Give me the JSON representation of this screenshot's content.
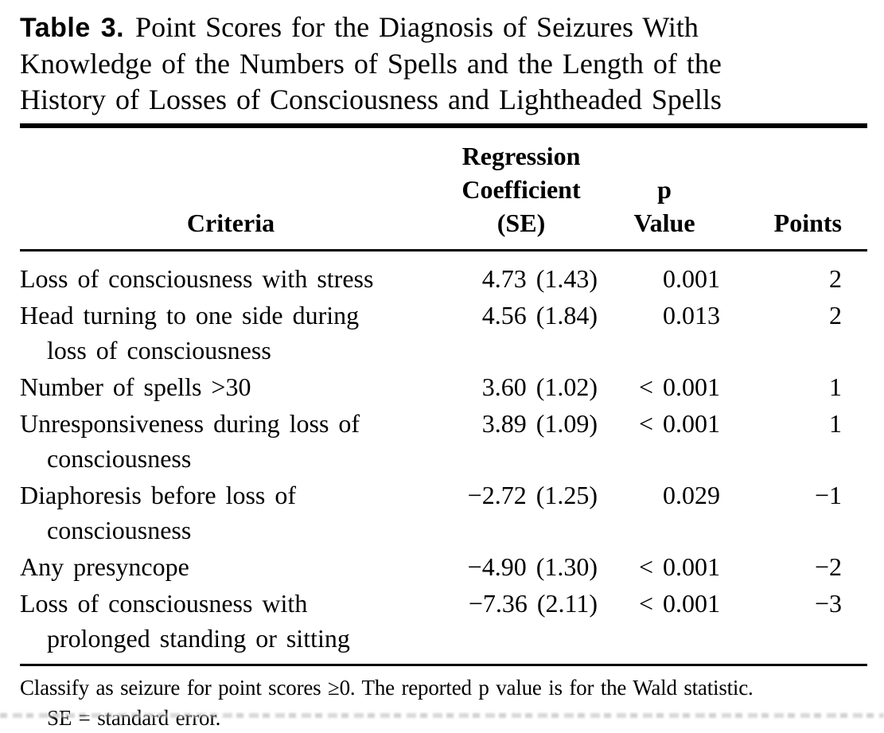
{
  "title": {
    "label": "Table 3.",
    "text": "Point Scores for the Diagnosis of Seizures With\nKnowledge of the Numbers of Spells and the Length of the\nHistory of Losses of Consciousness and Lightheaded Spells"
  },
  "table": {
    "columns": [
      "Criteria",
      "Regression\nCoefficient\n(SE)",
      "p\nValue",
      "Points"
    ],
    "rows": [
      {
        "criteria": "Loss of consciousness with stress",
        "coef": "4.73 (1.43)",
        "p": "0.001",
        "points": "2"
      },
      {
        "criteria": "Head turning to one side during\nloss of consciousness",
        "coef": "4.56 (1.84)",
        "p": "0.013",
        "points": "2"
      },
      {
        "criteria": "Number of spells >30",
        "coef": "3.60 (1.02)",
        "p": "< 0.001",
        "points": "1"
      },
      {
        "criteria": "Unresponsiveness during loss of\nconsciousness",
        "coef": "3.89 (1.09)",
        "p": "< 0.001",
        "points": "1"
      },
      {
        "criteria": "Diaphoresis before loss of\nconsciousness",
        "coef": "−2.72 (1.25)",
        "p": "0.029",
        "points": "−1"
      },
      {
        "criteria": "Any presyncope",
        "coef": "−4.90 (1.30)",
        "p": "< 0.001",
        "points": "−2"
      },
      {
        "criteria": "Loss of consciousness with\nprolonged standing or sitting",
        "coef": "−7.36 (2.11)",
        "p": "< 0.001",
        "points": "−3"
      }
    ]
  },
  "footnote": {
    "line1": "Classify as seizure for point scores ≥0. The reported p value is for the Wald statistic.",
    "line2": "SE = standard error."
  }
}
